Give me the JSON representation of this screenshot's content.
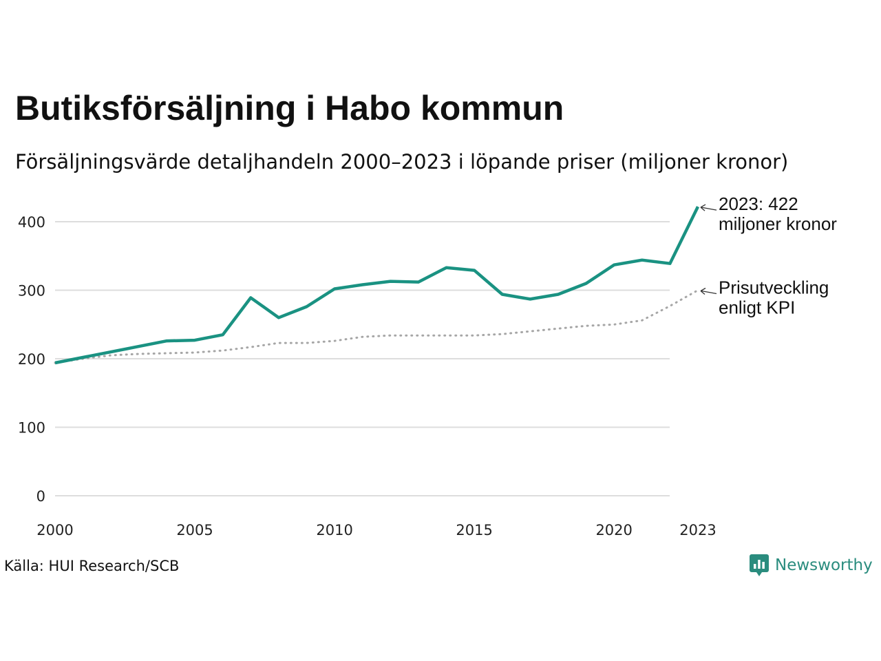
{
  "title": "Butiksförsäljning i Habo kommun",
  "subtitle": "Försäljningsvärde detaljhandeln 2000–2023 i löpande priser (miljoner kronor)",
  "source": "Källa: HUI Research/SCB",
  "brand": {
    "name": "Newsworthy",
    "icon": "newsworthy-logo-icon",
    "color": "#2a8c7e"
  },
  "chart_data": {
    "type": "line",
    "x": [
      2000,
      2001,
      2002,
      2003,
      2004,
      2005,
      2006,
      2007,
      2008,
      2009,
      2010,
      2011,
      2012,
      2013,
      2014,
      2015,
      2016,
      2017,
      2018,
      2019,
      2020,
      2021,
      2022,
      2023
    ],
    "xticks": [
      {
        "value": 2000,
        "label": "2000"
      },
      {
        "value": 2005,
        "label": "2005"
      },
      {
        "value": 2010,
        "label": "2010"
      },
      {
        "value": 2015,
        "label": "2015"
      },
      {
        "value": 2020,
        "label": "2020"
      },
      {
        "value": 2023,
        "label": "2023"
      }
    ],
    "yticks": [
      {
        "value": 0,
        "label": "0"
      },
      {
        "value": 100,
        "label": "100"
      },
      {
        "value": 200,
        "label": "200"
      },
      {
        "value": 300,
        "label": "300"
      },
      {
        "value": 400,
        "label": "400"
      }
    ],
    "xlim": [
      2000,
      2023
    ],
    "ylim": [
      0,
      430
    ],
    "grid": true,
    "series": [
      {
        "name": "",
        "style": "solid",
        "color": "#1a9282",
        "values": [
          194,
          202,
          210,
          218,
          226,
          227,
          235,
          289,
          260,
          276,
          302,
          308,
          313,
          312,
          333,
          329,
          294,
          287,
          294,
          310,
          337,
          344,
          339,
          422
        ]
      },
      {
        "name": "Prisutveckling enligt KPI",
        "style": "dotted",
        "color": "#a6a6a6",
        "values": [
          194,
          200,
          205,
          207,
          208,
          209,
          212,
          217,
          223,
          223,
          226,
          232,
          234,
          234,
          234,
          234,
          236,
          240,
          244,
          248,
          250,
          256,
          277,
          300
        ]
      }
    ],
    "annotations": [
      {
        "series": 0,
        "x": 2023,
        "y": 422,
        "lines": [
          "2023: 422",
          "miljoner kronor"
        ]
      },
      {
        "series": 1,
        "x": 2023,
        "y": 300,
        "lines": [
          "Prisutveckling",
          "enligt KPI"
        ]
      }
    ]
  }
}
